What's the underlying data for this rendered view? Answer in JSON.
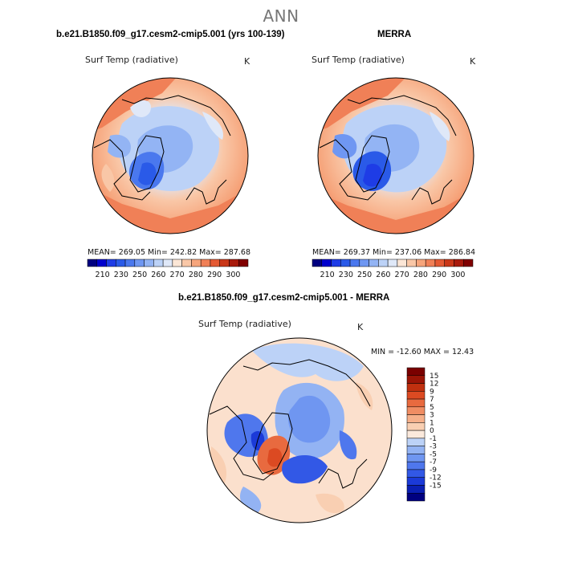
{
  "title": "ANN",
  "panels": {
    "model": {
      "title": "b.e21.B1850.f09_g17.cesm2-cmip5.001 (yrs 100-139)",
      "variable": "Surf Temp (radiative)",
      "units": "K",
      "stats": "MEAN= 269.05   Min= 242.82   Max= 287.68"
    },
    "obs": {
      "title": "MERRA",
      "variable": "Surf Temp (radiative)",
      "units": "K",
      "stats": "MEAN= 269.37   Min= 237.06   Max= 286.84"
    },
    "diff": {
      "title": "b.e21.B1850.f09_g17.cesm2-cmip5.001 - MERRA",
      "variable": "Surf Temp (radiative)",
      "units": "K",
      "stats": "MIN = -12.60 MAX =  12.43"
    }
  },
  "colorbars": {
    "absolute": {
      "colors": [
        "#000080",
        "#0000cd",
        "#1e3ce6",
        "#2a5ae8",
        "#4a78ee",
        "#6f97f2",
        "#93b4f4",
        "#bcd2f7",
        "#dfe8f8",
        "#fbe6d6",
        "#f9c7a7",
        "#f6a57c",
        "#f08057",
        "#e45a34",
        "#c93718",
        "#a81a0c",
        "#800000"
      ],
      "tick_labels": [
        "210",
        "230",
        "250",
        "260",
        "270",
        "280",
        "290",
        "300"
      ]
    },
    "difference": {
      "colors": [
        "#000080",
        "#0a1fb3",
        "#1b3ad8",
        "#3258e6",
        "#4f77ed",
        "#6f96f1",
        "#93b3f3",
        "#bcd2f7",
        "#fbe9dc",
        "#f9cfb2",
        "#f6b08a",
        "#f08d63",
        "#e86a3f",
        "#dc4a22",
        "#c0300f",
        "#9b1406",
        "#7a0000"
      ],
      "tick_labels": [
        "15",
        "12",
        "9",
        "7",
        "5",
        "3",
        "1",
        "0",
        "-1",
        "-3",
        "-5",
        "-7",
        "-9",
        "-12",
        "-15"
      ]
    }
  },
  "colors": {
    "title_gray": "#777777",
    "warm_base": "#f6a57c",
    "diff_base": "#fbe0cd"
  }
}
